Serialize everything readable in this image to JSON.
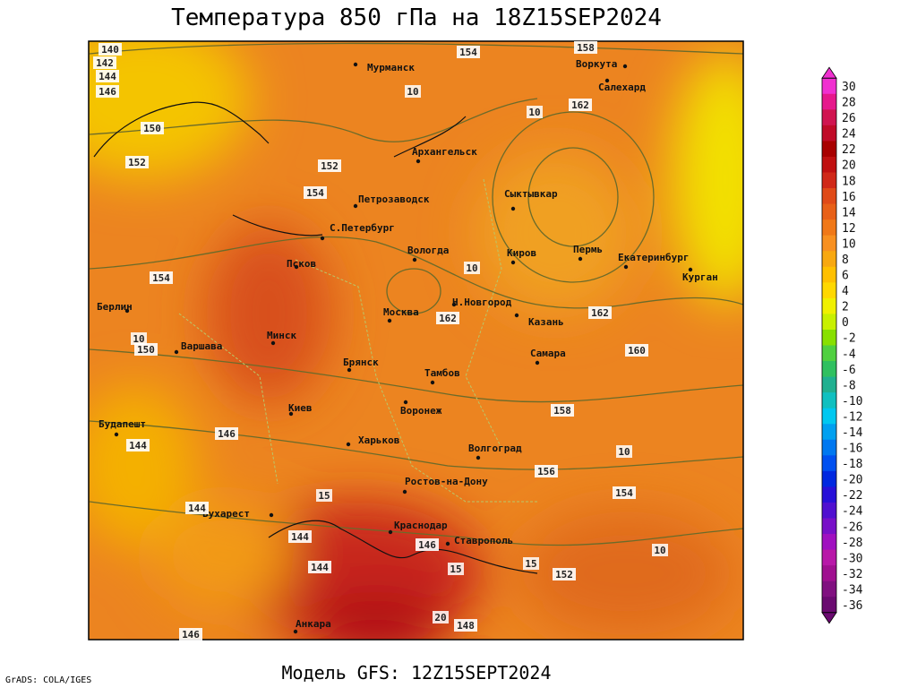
{
  "title": "Температура 850 гПа на 18Z15SEP2024",
  "subtitle": "Модель GFS: 12Z15SEPT2024",
  "credit": "GrADS: COLA/IGES",
  "cities": [
    "Мурманск",
    "Воркута",
    "Салехард",
    "Архангельск",
    "Петрозаводск",
    "Сыктывкар",
    "С.Петербург",
    "Пермь",
    "Екатеринбург",
    "Курган",
    "Вологда",
    "Киров",
    "Псков",
    "Берлин",
    "Н.Новгород",
    "Казань",
    "Москва",
    "Минск",
    "Варшава",
    "Самара",
    "Брянск",
    "Тамбов",
    "Киев",
    "Воронеж",
    "Будапешт",
    "Харьков",
    "Волгоград",
    "Ростов-на-Дону",
    "Бухарест",
    "Краснодар",
    "Ставрополь",
    "Анкара"
  ],
  "height_labels": [
    "140",
    "142",
    "144",
    "146",
    "154",
    "158",
    "162",
    "150",
    "152",
    "152",
    "154",
    "154",
    "162",
    "162",
    "160",
    "158",
    "156",
    "154",
    "150",
    "146",
    "144",
    "144",
    "144",
    "144",
    "146",
    "152",
    "148",
    "146"
  ],
  "temp_labels": [
    "10",
    "10",
    "10",
    "10",
    "10",
    "15",
    "15",
    "20",
    "15",
    "10"
  ],
  "colorbar": {
    "labels": [
      "30",
      "28",
      "26",
      "24",
      "22",
      "20",
      "18",
      "16",
      "14",
      "12",
      "10",
      "8",
      "6",
      "4",
      "2",
      "0",
      "-2",
      "-4",
      "-6",
      "-8",
      "-10",
      "-12",
      "-14",
      "-16",
      "-18",
      "-20",
      "-22",
      "-24",
      "-26",
      "-28",
      "-30",
      "-32",
      "-34",
      "-36"
    ],
    "colors": [
      "#f030d0",
      "#e6188c",
      "#d01450",
      "#c00a28",
      "#a80000",
      "#c01010",
      "#d02818",
      "#e04a18",
      "#e86018",
      "#f07818",
      "#f89020",
      "#f8a810",
      "#ffc000",
      "#ffd800",
      "#f0f000",
      "#c8f000",
      "#88e000",
      "#50d040",
      "#30c060",
      "#20b090",
      "#10c0c0",
      "#00c8f0",
      "#00a0f0",
      "#0078f0",
      "#0050f0",
      "#0028e0",
      "#2810d8",
      "#5010d0",
      "#7810c8",
      "#a010c0",
      "#b818a8",
      "#a01090",
      "#801080",
      "#6a0a70"
    ]
  }
}
